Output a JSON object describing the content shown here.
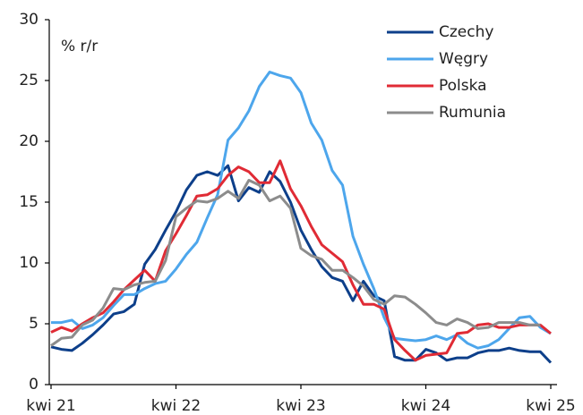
{
  "chart_data": {
    "type": "line",
    "annotation": "% r/r",
    "categories": [
      "kwi 21",
      null,
      null,
      null,
      null,
      null,
      null,
      null,
      null,
      null,
      null,
      null,
      "kwi 22",
      null,
      null,
      null,
      null,
      null,
      null,
      null,
      null,
      null,
      null,
      null,
      "kwi 23",
      null,
      null,
      null,
      null,
      null,
      null,
      null,
      null,
      null,
      null,
      null,
      "kwi 24",
      null,
      null,
      null,
      null,
      null,
      null,
      null,
      null,
      null,
      null,
      null,
      "kwi 25"
    ],
    "series": [
      {
        "name": "Czechy",
        "color": "#0d3f8a",
        "values": [
          3.1,
          2.9,
          2.8,
          3.4,
          4.1,
          4.9,
          5.8,
          6.0,
          6.6,
          9.9,
          11.1,
          12.7,
          14.2,
          16.0,
          17.2,
          17.5,
          17.2,
          18.0,
          15.1,
          16.2,
          15.8,
          17.5,
          16.7,
          15.0,
          12.7,
          11.1,
          9.7,
          8.8,
          8.5,
          6.9,
          8.5,
          7.3,
          6.9,
          2.3,
          2.0,
          2.0,
          2.9,
          2.6,
          2.0,
          2.2,
          2.2,
          2.6,
          2.8,
          2.8,
          3.0,
          2.8,
          2.7,
          2.7,
          1.8
        ]
      },
      {
        "name": "Węgry",
        "color": "#4da6ec",
        "values": [
          5.1,
          5.1,
          5.3,
          4.6,
          4.9,
          5.5,
          6.5,
          7.4,
          7.4,
          7.9,
          8.3,
          8.5,
          9.5,
          10.7,
          11.7,
          13.7,
          15.6,
          20.1,
          21.1,
          22.5,
          24.5,
          25.7,
          25.4,
          25.2,
          24.0,
          21.5,
          20.1,
          17.6,
          16.4,
          12.2,
          9.9,
          7.9,
          5.5,
          3.8,
          3.7,
          3.6,
          3.7,
          4.0,
          3.7,
          4.1,
          3.4,
          3.0,
          3.2,
          3.7,
          4.6,
          5.5,
          5.6,
          4.7,
          4.2
        ]
      },
      {
        "name": "Polska",
        "color": "#e02b35",
        "values": [
          4.3,
          4.7,
          4.4,
          5.0,
          5.5,
          5.9,
          6.8,
          7.8,
          8.6,
          9.4,
          8.5,
          11.0,
          12.4,
          13.9,
          15.5,
          15.6,
          16.1,
          17.2,
          17.9,
          17.5,
          16.6,
          16.6,
          18.4,
          16.1,
          14.7,
          13.0,
          11.5,
          10.8,
          10.1,
          8.2,
          6.6,
          6.6,
          6.2,
          3.7,
          2.8,
          2.0,
          2.4,
          2.5,
          2.6,
          4.2,
          4.3,
          4.9,
          5.0,
          4.7,
          4.7,
          4.9,
          4.9,
          4.9,
          4.2
        ]
      },
      {
        "name": "Rumunia",
        "color": "#8c8c8c",
        "values": [
          3.2,
          3.8,
          3.9,
          4.9,
          5.3,
          6.3,
          7.9,
          7.8,
          8.2,
          8.4,
          8.5,
          10.2,
          13.8,
          14.5,
          15.1,
          15.0,
          15.3,
          15.9,
          15.3,
          16.8,
          16.4,
          15.1,
          15.5,
          14.5,
          11.2,
          10.6,
          10.3,
          9.4,
          9.4,
          8.8,
          8.1,
          7.0,
          6.6,
          7.3,
          7.2,
          6.6,
          5.9,
          5.1,
          4.9,
          5.4,
          5.1,
          4.6,
          4.7,
          5.1,
          5.1,
          5.1,
          4.9,
          4.9,
          null
        ]
      }
    ],
    "ylim": [
      0,
      30
    ],
    "yticks": [
      0,
      5,
      10,
      15,
      20,
      25,
      30
    ],
    "grid": false,
    "legend": "top-right"
  }
}
